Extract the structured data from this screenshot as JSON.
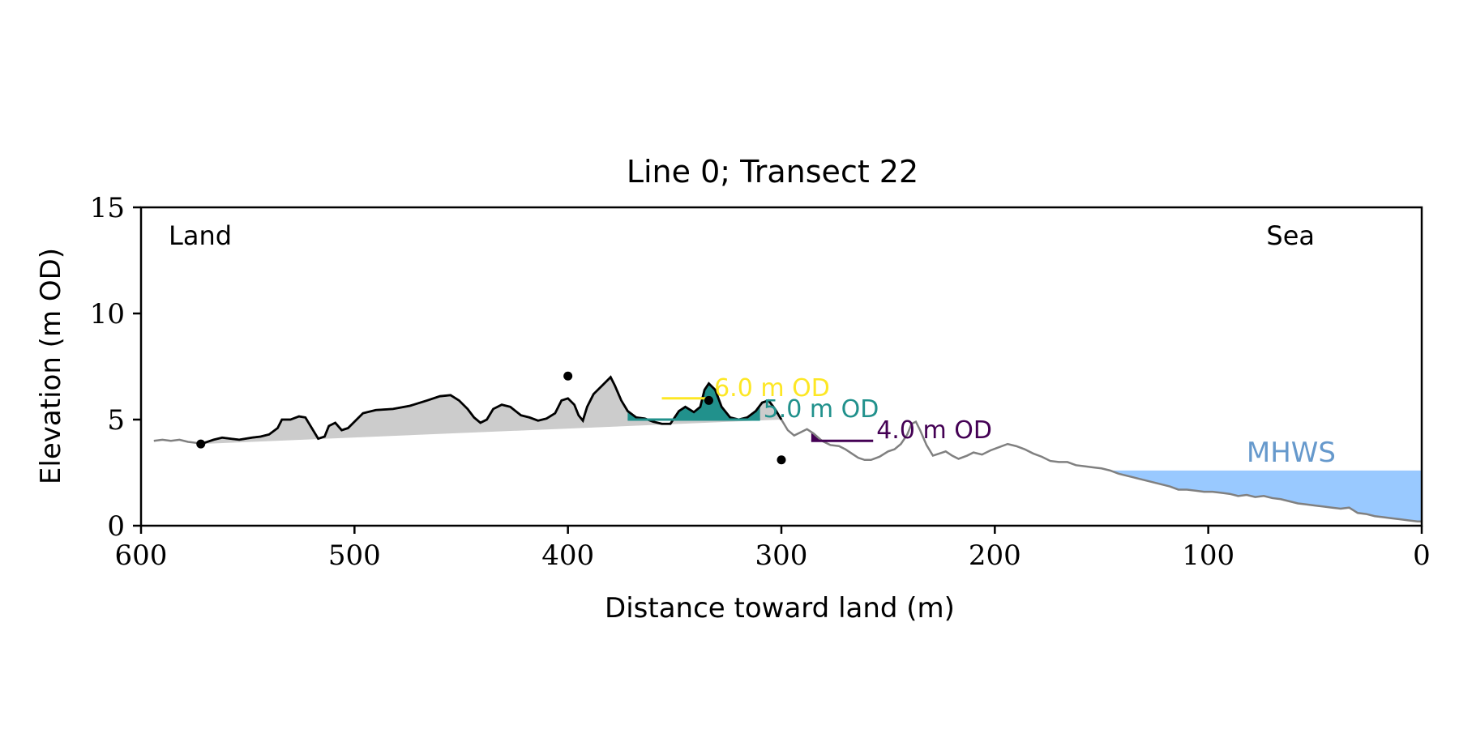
{
  "chart_data": {
    "type": "line",
    "title": "Line 0; Transect 22",
    "xlabel": "Distance toward land (m)",
    "ylabel": "Elevation (m OD)",
    "xlim": [
      600,
      0
    ],
    "ylim": [
      0,
      15
    ],
    "x_ticks": [
      600,
      500,
      400,
      300,
      200,
      100,
      0
    ],
    "y_ticks": [
      0,
      5,
      10,
      15
    ],
    "grid": false,
    "corner_labels": {
      "left": "Land",
      "right": "Sea"
    },
    "mhws": {
      "label": "MHWS",
      "level": 2.6,
      "x_from": 200,
      "x_to": 0,
      "color": "#99c9ff"
    },
    "profile": {
      "color_outer": "#808080",
      "color_dune": "#000000",
      "points": [
        [
          594,
          4.0
        ],
        [
          590,
          4.05
        ],
        [
          586,
          4.0
        ],
        [
          582,
          4.05
        ],
        [
          578,
          3.95
        ],
        [
          574,
          3.9
        ],
        [
          572,
          3.85
        ],
        [
          566,
          4.05
        ],
        [
          562,
          4.15
        ],
        [
          558,
          4.1
        ],
        [
          554,
          4.05
        ],
        [
          548,
          4.15
        ],
        [
          544,
          4.2
        ],
        [
          540,
          4.3
        ],
        [
          536,
          4.6
        ],
        [
          534,
          5.0
        ],
        [
          530,
          5.0
        ],
        [
          526,
          5.15
        ],
        [
          523,
          5.1
        ],
        [
          520,
          4.6
        ],
        [
          517,
          4.1
        ],
        [
          514,
          4.2
        ],
        [
          512,
          4.7
        ],
        [
          509,
          4.85
        ],
        [
          506,
          4.5
        ],
        [
          503,
          4.6
        ],
        [
          500,
          4.9
        ],
        [
          496,
          5.3
        ],
        [
          490,
          5.45
        ],
        [
          482,
          5.5
        ],
        [
          474,
          5.65
        ],
        [
          466,
          5.9
        ],
        [
          460,
          6.1
        ],
        [
          455,
          6.15
        ],
        [
          451,
          5.9
        ],
        [
          447,
          5.5
        ],
        [
          444,
          5.1
        ],
        [
          441,
          4.85
        ],
        [
          438,
          5.0
        ],
        [
          435,
          5.5
        ],
        [
          431,
          5.7
        ],
        [
          427,
          5.6
        ],
        [
          422,
          5.2
        ],
        [
          418,
          5.1
        ],
        [
          414,
          4.95
        ],
        [
          410,
          5.05
        ],
        [
          406,
          5.3
        ],
        [
          403,
          5.9
        ],
        [
          400,
          6.0
        ],
        [
          397,
          5.7
        ],
        [
          395,
          5.2
        ],
        [
          393,
          4.95
        ],
        [
          391,
          5.6
        ],
        [
          388,
          6.2
        ],
        [
          384,
          6.6
        ],
        [
          380,
          7.0
        ],
        [
          378,
          6.6
        ],
        [
          375,
          5.9
        ],
        [
          372,
          5.4
        ],
        [
          368,
          5.1
        ],
        [
          364,
          5.05
        ],
        [
          360,
          4.9
        ],
        [
          356,
          4.8
        ],
        [
          352,
          4.8
        ],
        [
          348,
          5.4
        ],
        [
          345,
          5.6
        ],
        [
          341,
          5.35
        ],
        [
          338,
          5.6
        ],
        [
          336,
          6.4
        ],
        [
          334,
          6.7
        ],
        [
          331,
          6.4
        ],
        [
          328,
          5.6
        ],
        [
          324,
          5.1
        ],
        [
          320,
          5.0
        ],
        [
          316,
          5.1
        ],
        [
          312,
          5.4
        ],
        [
          309,
          5.8
        ],
        [
          306,
          5.9
        ],
        [
          303,
          5.5
        ],
        [
          300,
          5.0
        ],
        [
          297,
          4.5
        ],
        [
          294,
          4.25
        ],
        [
          291,
          4.4
        ],
        [
          288,
          4.55
        ],
        [
          285,
          4.35
        ],
        [
          281,
          4.0
        ],
        [
          277,
          3.8
        ],
        [
          273,
          3.75
        ],
        [
          270,
          3.6
        ],
        [
          267,
          3.4
        ],
        [
          264,
          3.2
        ],
        [
          261,
          3.1
        ],
        [
          258,
          3.1
        ],
        [
          254,
          3.25
        ],
        [
          250,
          3.5
        ],
        [
          247,
          3.6
        ],
        [
          244,
          3.85
        ],
        [
          241,
          4.3
        ],
        [
          239,
          4.8
        ],
        [
          237,
          4.9
        ],
        [
          235,
          4.5
        ],
        [
          232,
          3.8
        ],
        [
          229,
          3.3
        ],
        [
          226,
          3.4
        ],
        [
          223,
          3.5
        ],
        [
          220,
          3.3
        ],
        [
          217,
          3.15
        ],
        [
          213,
          3.3
        ],
        [
          210,
          3.45
        ],
        [
          206,
          3.35
        ],
        [
          202,
          3.55
        ],
        [
          198,
          3.7
        ],
        [
          194,
          3.85
        ],
        [
          190,
          3.75
        ],
        [
          186,
          3.6
        ],
        [
          182,
          3.4
        ],
        [
          178,
          3.25
        ],
        [
          174,
          3.05
        ],
        [
          170,
          3.0
        ],
        [
          166,
          3.0
        ],
        [
          162,
          2.85
        ],
        [
          158,
          2.8
        ],
        [
          154,
          2.75
        ],
        [
          150,
          2.7
        ],
        [
          146,
          2.6
        ],
        [
          142,
          2.45
        ],
        [
          138,
          2.35
        ],
        [
          134,
          2.25
        ],
        [
          130,
          2.15
        ],
        [
          126,
          2.05
        ],
        [
          122,
          1.95
        ],
        [
          118,
          1.85
        ],
        [
          114,
          1.7
        ],
        [
          110,
          1.7
        ],
        [
          106,
          1.65
        ],
        [
          102,
          1.6
        ],
        [
          98,
          1.6
        ],
        [
          94,
          1.55
        ],
        [
          90,
          1.5
        ],
        [
          86,
          1.4
        ],
        [
          82,
          1.45
        ],
        [
          78,
          1.35
        ],
        [
          74,
          1.4
        ],
        [
          70,
          1.3
        ],
        [
          66,
          1.25
        ],
        [
          62,
          1.15
        ],
        [
          58,
          1.05
        ],
        [
          54,
          1.0
        ],
        [
          50,
          0.95
        ],
        [
          46,
          0.9
        ],
        [
          42,
          0.85
        ],
        [
          38,
          0.8
        ],
        [
          34,
          0.85
        ],
        [
          30,
          0.6
        ],
        [
          26,
          0.55
        ],
        [
          22,
          0.45
        ],
        [
          18,
          0.4
        ],
        [
          14,
          0.35
        ],
        [
          10,
          0.3
        ],
        [
          6,
          0.25
        ],
        [
          2,
          0.2
        ],
        [
          0,
          0.2
        ]
      ]
    },
    "dune_extent": {
      "from": 572,
      "to": 300
    },
    "markers": [
      [
        572,
        3.85
      ],
      [
        400,
        7.05
      ],
      [
        334,
        5.9
      ],
      [
        300,
        3.1
      ]
    ],
    "thresholds": [
      {
        "label": "6.0 m OD",
        "level": 6.0,
        "color": "#fde725",
        "x_from": 356,
        "x_to": 333
      },
      {
        "label": "5.0 m OD",
        "level": 5.0,
        "color": "#21918c",
        "x_from": 372,
        "x_to": 310
      },
      {
        "label": "4.0 m OD",
        "level": 4.0,
        "color": "#440154",
        "x_from": 286,
        "x_to": 257
      }
    ]
  }
}
